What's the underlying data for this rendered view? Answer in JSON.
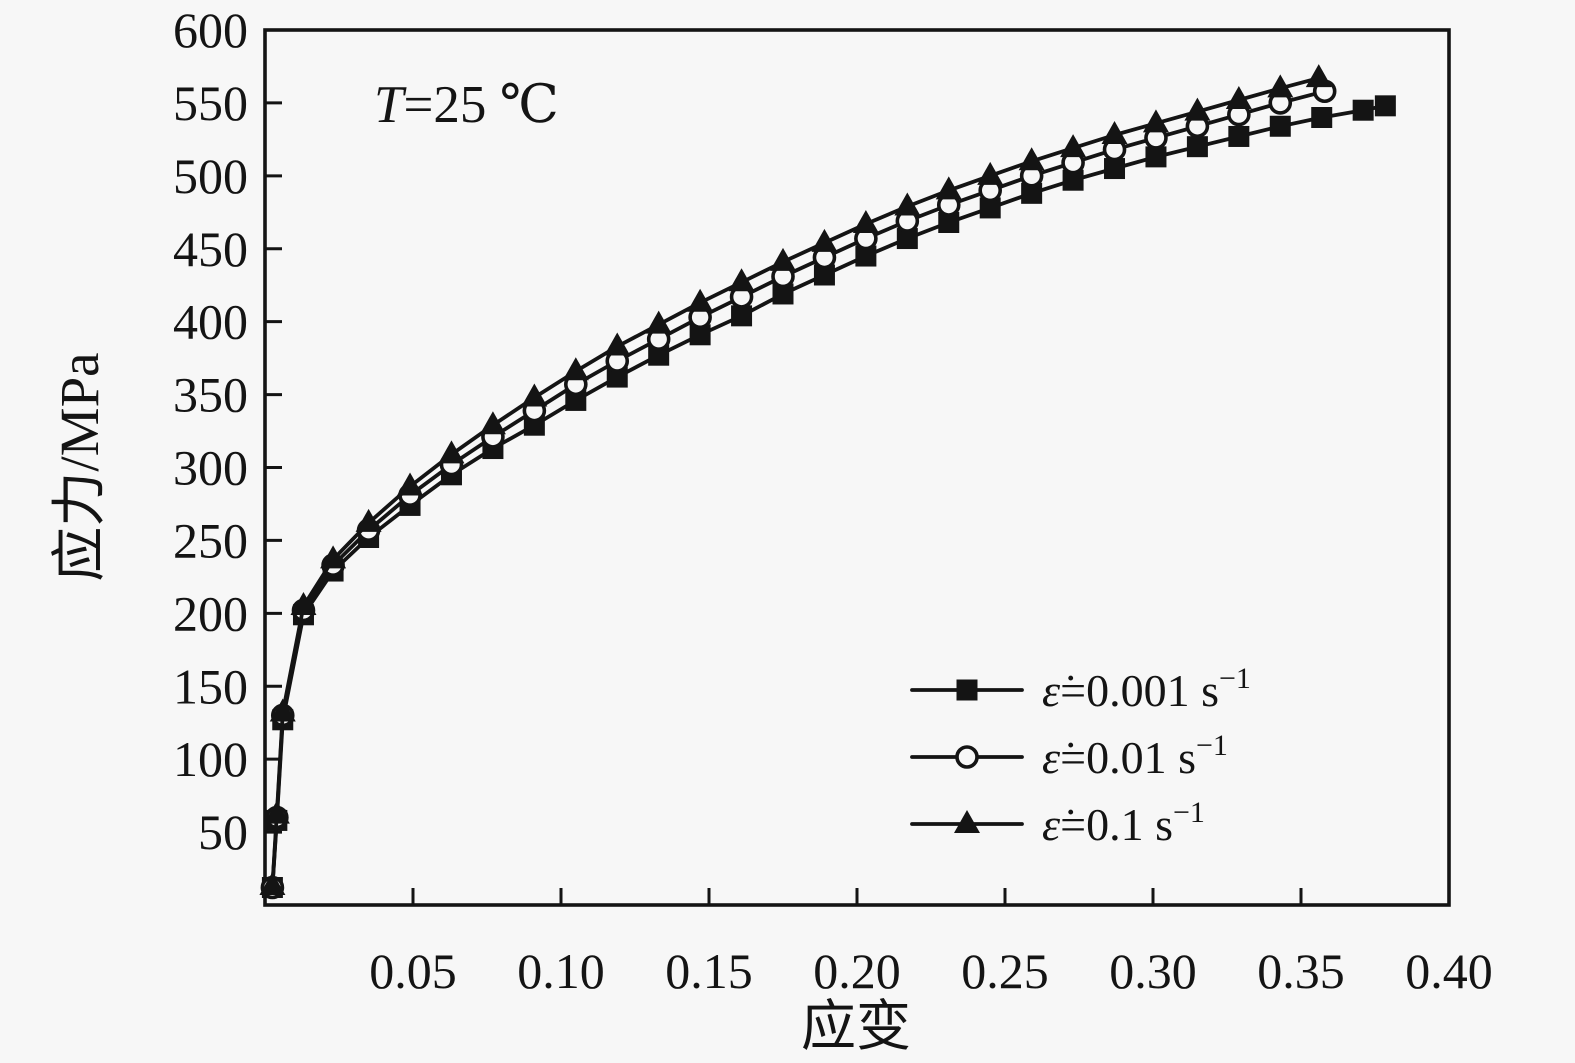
{
  "chart_data": {
    "type": "line",
    "title": "",
    "annotation": "T=25 ℃",
    "annotation_parts": {
      "var": "T",
      "rest": "=25 ℃"
    },
    "xlabel": "应变",
    "ylabel": "应力/MPa",
    "xlim": [
      0,
      0.4
    ],
    "ylim": [
      0,
      600
    ],
    "grid": false,
    "legend_position": "inside lower right",
    "x_ticks": [
      0.05,
      0.1,
      0.15,
      0.2,
      0.25,
      0.3,
      0.35,
      0.4
    ],
    "x_tick_labels": [
      "0.05",
      "0.10",
      "0.15",
      "0.20",
      "0.25",
      "0.30",
      "0.35",
      "0.40"
    ],
    "y_ticks": [
      50,
      100,
      150,
      200,
      250,
      300,
      350,
      400,
      450,
      500,
      550,
      600
    ],
    "y_tick_labels": [
      "50",
      "100",
      "150",
      "200",
      "250",
      "300",
      "350",
      "400",
      "450",
      "500",
      "550",
      "600"
    ],
    "colors": {
      "ink": "#141414",
      "background": "#f7f7f7"
    },
    "series": [
      {
        "name": "ε̇=0.001 s⁻¹",
        "marker": "filled-square",
        "x": [
          0.0025,
          0.004,
          0.006,
          0.013,
          0.023,
          0.035,
          0.049,
          0.063,
          0.077,
          0.091,
          0.105,
          0.119,
          0.133,
          0.147,
          0.161,
          0.175,
          0.189,
          0.203,
          0.217,
          0.231,
          0.245,
          0.259,
          0.273,
          0.287,
          0.301,
          0.315,
          0.329,
          0.343,
          0.357,
          0.371,
          0.3785
        ],
        "y": [
          12,
          58,
          127,
          199,
          229,
          252,
          274,
          295,
          313,
          329,
          346,
          362,
          377,
          391,
          404,
          419,
          432,
          445,
          457,
          468,
          478,
          488,
          497,
          505,
          513,
          520,
          527,
          534,
          540,
          545,
          548
        ]
      },
      {
        "name": "ε̇=0.01 s⁻¹",
        "marker": "open-circle",
        "x": [
          0.0025,
          0.004,
          0.006,
          0.013,
          0.023,
          0.035,
          0.049,
          0.063,
          0.077,
          0.091,
          0.105,
          0.119,
          0.133,
          0.147,
          0.161,
          0.175,
          0.189,
          0.203,
          0.217,
          0.231,
          0.245,
          0.259,
          0.273,
          0.287,
          0.301,
          0.315,
          0.329,
          0.343,
          0.358
        ],
        "y": [
          12,
          60,
          130,
          202,
          233,
          257,
          281,
          302,
          321,
          339,
          357,
          373,
          388,
          403,
          417,
          431,
          444,
          457,
          469,
          480,
          490,
          500,
          509,
          518,
          526,
          534,
          542,
          550,
          558
        ]
      },
      {
        "name": "ε̇=0.1 s⁻¹",
        "marker": "filled-triangle",
        "x": [
          0.0025,
          0.004,
          0.006,
          0.013,
          0.023,
          0.035,
          0.049,
          0.063,
          0.077,
          0.091,
          0.105,
          0.119,
          0.133,
          0.147,
          0.161,
          0.175,
          0.189,
          0.203,
          0.217,
          0.231,
          0.245,
          0.259,
          0.273,
          0.287,
          0.301,
          0.315,
          0.329,
          0.343,
          0.356
        ],
        "y": [
          13,
          62,
          132,
          205,
          237,
          262,
          287,
          309,
          329,
          348,
          366,
          383,
          398,
          413,
          427,
          441,
          454,
          467,
          479,
          490,
          500,
          510,
          519,
          528,
          536,
          544,
          552,
          560,
          567
        ]
      }
    ],
    "legend": [
      {
        "label": "ε̇=0.001 s⁻¹",
        "eps": "ε̇",
        "mid": "=0.001 s",
        "sup": "−1",
        "marker": "filled-square"
      },
      {
        "label": "ε̇=0.01 s⁻¹",
        "eps": "ε̇",
        "mid": "=0.01 s",
        "sup": "−1",
        "marker": "open-circle"
      },
      {
        "label": "ε̇=0.1 s⁻¹",
        "eps": "ε̇",
        "mid": "=0.1 s",
        "sup": "−1",
        "marker": "filled-triangle"
      }
    ]
  }
}
